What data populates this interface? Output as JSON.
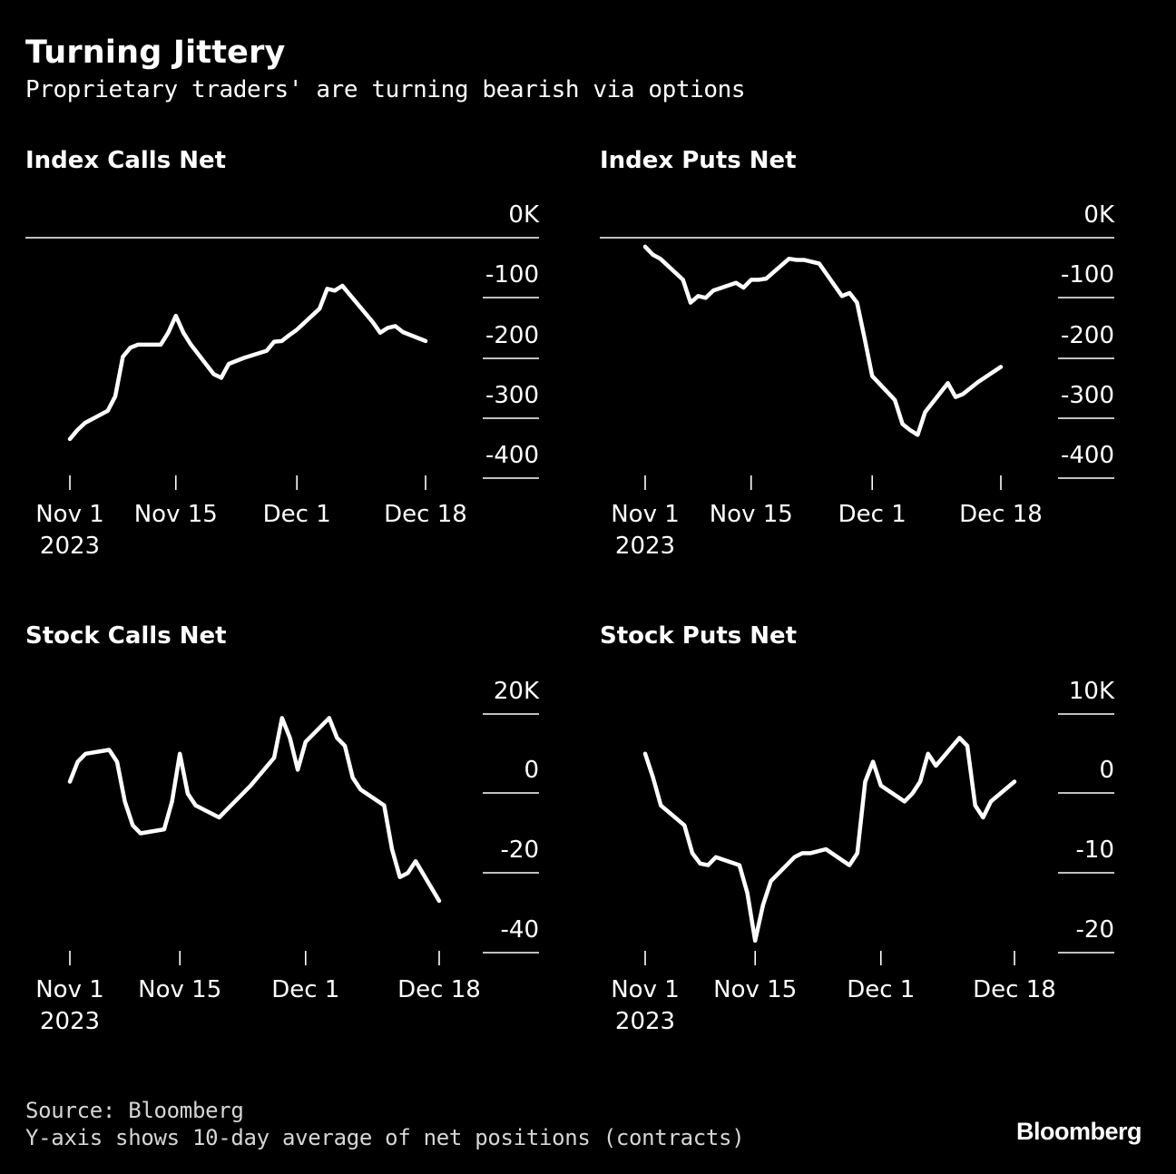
{
  "header": {
    "title": "Turning Jittery",
    "subtitle": "Proprietary traders' are turning bearish via options"
  },
  "footer": {
    "source": "Source: Bloomberg",
    "note": "Y-axis shows 10-day average of net positions (contracts)",
    "brand": "Bloomberg"
  },
  "colors": {
    "background": "#000000",
    "line": "#ffffff"
  },
  "chart_data": [
    {
      "type": "line",
      "title": "Index Calls Net",
      "x_ticks": [
        "Nov 1",
        "Nov 15",
        "Dec 1",
        "Dec 18"
      ],
      "x_tick_sub": "2023",
      "y_ticks": [
        "0K",
        "-100",
        "-200",
        "-300",
        "-400"
      ],
      "ylim": [
        -400,
        0
      ],
      "x_range": [
        "2023-11-01",
        "2023-12-18"
      ],
      "series": [
        {
          "x": [
            "2023-11-01",
            "2023-11-02",
            "2023-11-03",
            "2023-11-06",
            "2023-11-07",
            "2023-11-08",
            "2023-11-09",
            "2023-11-10",
            "2023-11-13",
            "2023-11-14",
            "2023-11-15",
            "2023-11-16",
            "2023-11-17",
            "2023-11-20",
            "2023-11-21",
            "2023-11-22",
            "2023-11-24",
            "2023-11-27",
            "2023-11-28",
            "2023-11-29",
            "2023-11-30",
            "2023-12-01",
            "2023-12-04",
            "2023-12-05",
            "2023-12-06",
            "2023-12-07",
            "2023-12-08",
            "2023-12-11",
            "2023-12-12",
            "2023-12-13",
            "2023-12-14",
            "2023-12-15",
            "2023-12-18"
          ],
          "values": [
            -335,
            -320,
            -308,
            -288,
            -264,
            -198,
            -183,
            -178,
            -178,
            -158,
            -130,
            -158,
            -178,
            -227,
            -233,
            -210,
            -200,
            -188,
            -173,
            -172,
            -162,
            -153,
            -118,
            -85,
            -88,
            -80,
            -95,
            -140,
            -158,
            -150,
            -147,
            -157,
            -172
          ]
        }
      ]
    },
    {
      "type": "line",
      "title": "Index Puts Net",
      "x_ticks": [
        "Nov 1",
        "Nov 15",
        "Dec 1",
        "Dec 18"
      ],
      "x_tick_sub": "2023",
      "y_ticks": [
        "0K",
        "-100",
        "-200",
        "-300",
        "-400"
      ],
      "ylim": [
        -400,
        0
      ],
      "x_range": [
        "2023-11-01",
        "2023-12-18"
      ],
      "series": [
        {
          "x": [
            "2023-11-01",
            "2023-11-02",
            "2023-11-03",
            "2023-11-06",
            "2023-11-07",
            "2023-11-08",
            "2023-11-09",
            "2023-11-10",
            "2023-11-13",
            "2023-11-14",
            "2023-11-15",
            "2023-11-16",
            "2023-11-17",
            "2023-11-20",
            "2023-11-21",
            "2023-11-22",
            "2023-11-24",
            "2023-11-27",
            "2023-11-28",
            "2023-11-29",
            "2023-11-30",
            "2023-12-01",
            "2023-12-04",
            "2023-12-05",
            "2023-12-06",
            "2023-12-07",
            "2023-12-08",
            "2023-12-11",
            "2023-12-12",
            "2023-12-13",
            "2023-12-14",
            "2023-12-15",
            "2023-12-18"
          ],
          "values": [
            -15,
            -28,
            -35,
            -70,
            -108,
            -97,
            -100,
            -88,
            -75,
            -83,
            -70,
            -70,
            -68,
            -35,
            -37,
            -37,
            -43,
            -97,
            -92,
            -108,
            -168,
            -230,
            -270,
            -310,
            -320,
            -328,
            -290,
            -242,
            -265,
            -260,
            -250,
            -240,
            -215
          ]
        }
      ]
    },
    {
      "type": "line",
      "title": "Stock Calls Net",
      "x_ticks": [
        "Nov 1",
        "Nov 15",
        "Dec 1",
        "Dec 18"
      ],
      "x_tick_sub": "2023",
      "y_ticks": [
        "20K",
        "0",
        "-20",
        "-40"
      ],
      "ylim": [
        -40,
        20
      ],
      "x_range": [
        "2023-11-01",
        "2023-12-18"
      ],
      "series": [
        {
          "x": [
            "2023-11-01",
            "2023-11-02",
            "2023-11-03",
            "2023-11-06",
            "2023-11-07",
            "2023-11-08",
            "2023-11-09",
            "2023-11-10",
            "2023-11-13",
            "2023-11-14",
            "2023-11-15",
            "2023-11-16",
            "2023-11-17",
            "2023-11-20",
            "2023-11-21",
            "2023-11-22",
            "2023-11-24",
            "2023-11-27",
            "2023-11-28",
            "2023-11-29",
            "2023-11-30",
            "2023-12-01",
            "2023-12-04",
            "2023-12-05",
            "2023-12-06",
            "2023-12-07",
            "2023-12-08",
            "2023-12-11",
            "2023-12-12",
            "2023-12-13",
            "2023-12-14",
            "2023-12-15",
            "2023-12-18"
          ],
          "values": [
            3,
            8,
            10,
            11,
            8,
            -2,
            -8,
            -10,
            -9,
            -2,
            10,
            0,
            -3,
            -6,
            -4,
            -2,
            2,
            9,
            19,
            14,
            6,
            13,
            19,
            14,
            12,
            4,
            1,
            -3,
            -14,
            -21,
            -20,
            -17,
            -27
          ]
        }
      ]
    },
    {
      "type": "line",
      "title": "Stock Puts Net",
      "x_ticks": [
        "Nov 1",
        "Nov 15",
        "Dec 1",
        "Dec 18"
      ],
      "x_tick_sub": "2023",
      "y_ticks": [
        "10K",
        "0",
        "-10",
        "-20"
      ],
      "ylim": [
        -20,
        10
      ],
      "x_range": [
        "2023-11-01",
        "2023-12-18"
      ],
      "series": [
        {
          "x": [
            "2023-11-01",
            "2023-11-02",
            "2023-11-03",
            "2023-11-06",
            "2023-11-07",
            "2023-11-08",
            "2023-11-09",
            "2023-11-10",
            "2023-11-13",
            "2023-11-14",
            "2023-11-15",
            "2023-11-16",
            "2023-11-17",
            "2023-11-20",
            "2023-11-21",
            "2023-11-22",
            "2023-11-24",
            "2023-11-27",
            "2023-11-28",
            "2023-11-29",
            "2023-11-30",
            "2023-12-01",
            "2023-12-04",
            "2023-12-05",
            "2023-12-06",
            "2023-12-07",
            "2023-12-08",
            "2023-12-11",
            "2023-12-12",
            "2023-12-13",
            "2023-12-14",
            "2023-12-15",
            "2023-12-18"
          ],
          "values": [
            5,
            2,
            -1.5,
            -4,
            -7.5,
            -8.8,
            -9,
            -8,
            -9,
            -12.5,
            -18.5,
            -14,
            -11,
            -8,
            -7.5,
            -7.5,
            -7,
            -9,
            -7.5,
            1.5,
            4,
            1,
            -1,
            0,
            1.5,
            5,
            3.5,
            7,
            6,
            -1.5,
            -3,
            -1,
            1.5
          ]
        }
      ]
    }
  ]
}
